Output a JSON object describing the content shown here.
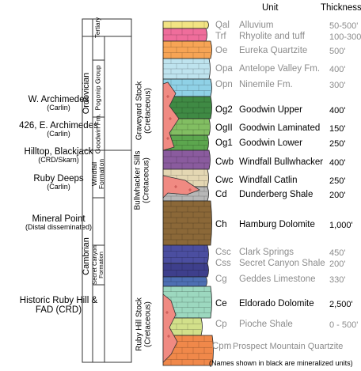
{
  "headers": {
    "unit": "Unit",
    "thickness": "Thickness"
  },
  "deposits": [
    {
      "name": "W. Archimedes",
      "sub": "(Carlin)"
    },
    {
      "name": "426, E. Archimedes",
      "sub": "(Carlin)"
    },
    {
      "name": "Hilltop, Blackjack",
      "sub": "(CRD/Skarn)"
    },
    {
      "name": "Ruby Deeps",
      "sub": "(Carlin)"
    },
    {
      "name": "Mineral Point",
      "sub": "(Distal disseminated)"
    },
    {
      "name": "Historic Ruby Hill &",
      "sub": "FAD (CRD)"
    }
  ],
  "periods": {
    "tertiary": "Tertiary",
    "ordovician": "Ordovician",
    "cambrian": "Cambrian"
  },
  "formations": {
    "pogonip": "Pogonip Group",
    "goodwin": "Goodwin Fm.",
    "windfall": "Windfall Formation",
    "secret_canyon": "Secret Canyon Formation"
  },
  "intrusions": {
    "graveyard": {
      "name": "Graveyard Stock",
      "age": "(Cretaceous)"
    },
    "bullwhacker": {
      "name": "Bullwhacker Sills",
      "age": "(Cretaceous)"
    },
    "ruby_hill": {
      "name": "Ruby Hill Stock",
      "age": "(Cretaceous)"
    }
  },
  "units": [
    {
      "code": "Qal",
      "name": "Alluvium",
      "thickness": "50-500'",
      "mineralized": false,
      "color": "#f2e383"
    },
    {
      "code": "Trf",
      "name": "Rhyolite and tuff",
      "thickness": "100-300'",
      "mineralized": false,
      "color": "#ef6d9b"
    },
    {
      "code": "Oe",
      "name": "Eureka Quartzite",
      "thickness": "500'",
      "mineralized": false,
      "color": "#f7a455"
    },
    {
      "code": "Opa",
      "name": "Antelope Valley Fm.",
      "thickness": "400'",
      "mineralized": false,
      "color": "#bee3ee"
    },
    {
      "code": "Opn",
      "name": "Ninemile Fm.",
      "thickness": "300'",
      "mineralized": false,
      "color": "#8fd1e6"
    },
    {
      "code": "Og2",
      "name": "Goodwin Upper",
      "thickness": "400'",
      "mineralized": true,
      "color": "#3f8a44"
    },
    {
      "code": "OgII",
      "name": "Goodwin Laminated",
      "thickness": "150'",
      "mineralized": true,
      "color": "#82be62"
    },
    {
      "code": "Og1",
      "name": "Goodwin Lower",
      "thickness": "250'",
      "mineralized": true,
      "color": "#5ca64e"
    },
    {
      "code": "Cwb",
      "name": "Windfall Bullwhacker",
      "thickness": "400'",
      "mineralized": true,
      "color": "#8a5b9e"
    },
    {
      "code": "Cwc",
      "name": "Windfall Catlin",
      "thickness": "250'",
      "mineralized": true,
      "color": "#e4d7b3"
    },
    {
      "code": "Cd",
      "name": "Dunderberg Shale",
      "thickness": "200'",
      "mineralized": true,
      "color": "#b7b7b7"
    },
    {
      "code": "Ch",
      "name": "Hamburg Dolomite",
      "thickness": "1,000'",
      "mineralized": true,
      "color": "#8b6838"
    },
    {
      "code": "Csc",
      "name": "Clark Springs",
      "thickness": "450'",
      "mineralized": false,
      "color": "#4b4ea0"
    },
    {
      "code": "Css",
      "name": "Secret Canyon Shale",
      "thickness": "200'",
      "mineralized": false,
      "color": "#3e3f8c"
    },
    {
      "code": "Cg",
      "name": "Geddes Limestone",
      "thickness": "330'",
      "mineralized": false,
      "color": "#4d6fb3"
    },
    {
      "code": "Ce",
      "name": "Eldorado Dolomite",
      "thickness": "2,500'",
      "mineralized": true,
      "color": "#9cd8bf"
    },
    {
      "code": "Cp",
      "name": "Pioche Shale",
      "thickness": "0 - 500'",
      "mineralized": false,
      "color": "#d2e08a"
    },
    {
      "code": "Cpm",
      "name": "Prospect Mountain Quartzite",
      "thickness": "",
      "mineralized": false,
      "color": "#f0884a"
    }
  ],
  "intrusion_color": "#f08a82",
  "footnote": "(Names shown in black are mineralized units)"
}
